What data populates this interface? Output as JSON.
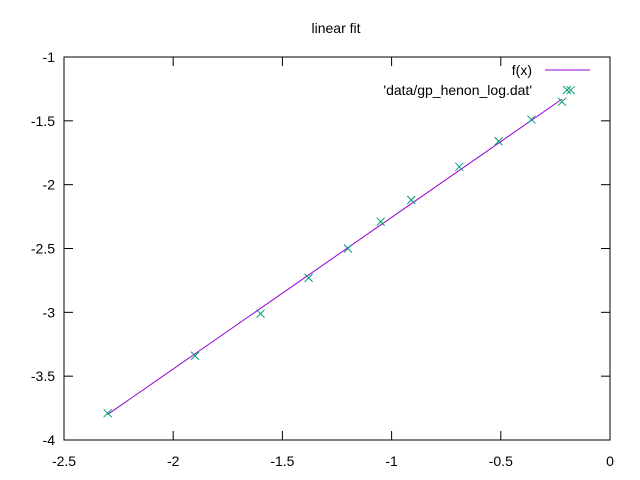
{
  "chart_data": {
    "type": "line",
    "title": "linear fit",
    "xlabel": "",
    "ylabel": "",
    "xlim": [
      -2.5,
      0
    ],
    "ylim": [
      -4,
      -1
    ],
    "xticks": [
      "-2.5",
      "-2",
      "-1.5",
      "-1",
      "-0.5",
      "0"
    ],
    "yticks": [
      "-1",
      "-1.5",
      "-2",
      "-2.5",
      "-3",
      "-3.5",
      "-4"
    ],
    "grid": false,
    "legend_position": "top-right",
    "series": [
      {
        "name": "f(x)",
        "kind": "line",
        "color": "#9400d3",
        "x": [
          -2.3,
          -0.22
        ],
        "y": [
          -3.8,
          -1.33
        ]
      },
      {
        "name": "'data/gp_henon_log.dat'",
        "kind": "points",
        "marker": "x",
        "color": "#009e73",
        "x": [
          -2.3,
          -1.9,
          -1.6,
          -1.38,
          -1.2,
          -1.05,
          -0.91,
          -0.69,
          -0.51,
          -0.36,
          -0.22,
          -0.18
        ],
        "y": [
          -3.79,
          -3.34,
          -3.01,
          -2.73,
          -2.5,
          -2.29,
          -2.12,
          -1.86,
          -1.66,
          -1.49,
          -1.35,
          -1.26
        ]
      }
    ]
  }
}
